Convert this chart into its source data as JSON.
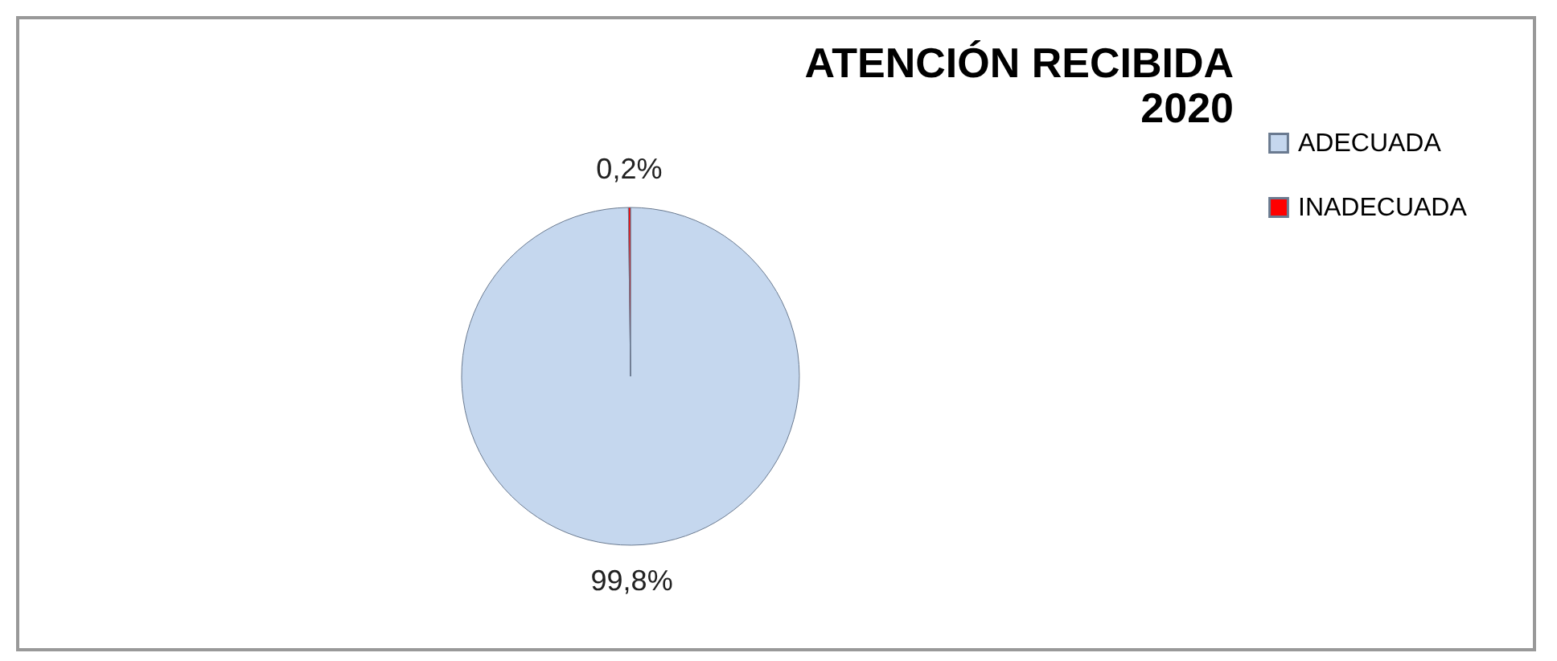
{
  "chart_data": {
    "type": "pie",
    "title": "ATENCIÓN RECIBIDA\n2020",
    "categories": [
      "ADECUADA",
      "INADECUADA"
    ],
    "values": [
      99.8,
      0.2
    ],
    "colors": [
      "#c5d7ee",
      "#ff0000"
    ],
    "value_labels": [
      "99,8%",
      "0,2%"
    ],
    "legend": "right"
  }
}
